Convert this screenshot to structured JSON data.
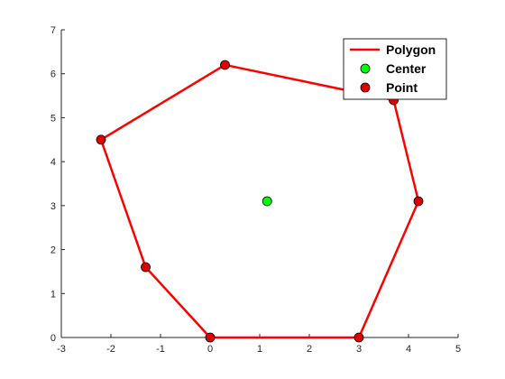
{
  "chart_data": {
    "type": "scatter",
    "title": "",
    "xlabel": "",
    "ylabel": "",
    "xlim": [
      -3,
      5
    ],
    "ylim": [
      0,
      7
    ],
    "xticks": [
      -3,
      -2,
      -1,
      0,
      1,
      2,
      3,
      4,
      5
    ],
    "yticks": [
      0,
      1,
      2,
      3,
      4,
      5,
      6,
      7
    ],
    "grid": false,
    "legend_position": "top-right",
    "series": [
      {
        "name": "Polygon",
        "kind": "line",
        "color": "#ff0000",
        "points": [
          [
            0,
            0
          ],
          [
            3,
            0
          ],
          [
            4.2,
            3.1
          ],
          [
            3.7,
            5.4
          ],
          [
            0.3,
            6.2
          ],
          [
            -2.2,
            4.5
          ],
          [
            -1.3,
            1.6
          ],
          [
            0,
            0
          ]
        ]
      },
      {
        "name": "Center",
        "kind": "marker",
        "color": "#00ff00",
        "points": [
          [
            1.15,
            3.1
          ]
        ]
      },
      {
        "name": "Point",
        "kind": "marker",
        "color": "#e00000",
        "points": [
          [
            0,
            0
          ],
          [
            3,
            0
          ],
          [
            4.2,
            3.1
          ],
          [
            3.7,
            5.4
          ],
          [
            0.3,
            6.2
          ],
          [
            -2.2,
            4.5
          ],
          [
            -1.3,
            1.6
          ]
        ]
      }
    ]
  }
}
